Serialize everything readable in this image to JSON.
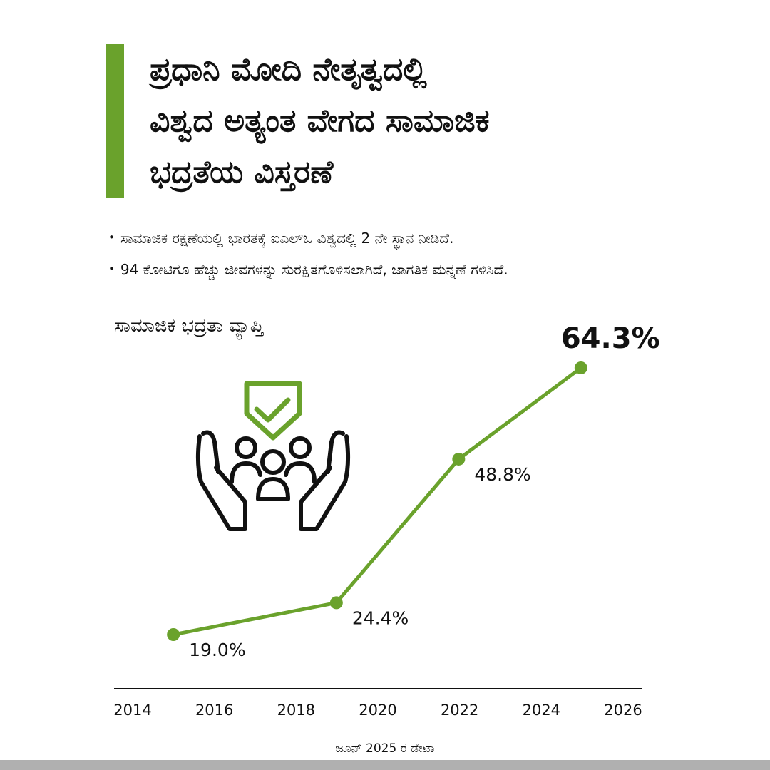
{
  "header": {
    "title_lines": [
      "ಪ್ರಧಾನಿ ಮೋದಿ ನೇತೃತ್ವದಲ್ಲಿ",
      "ವಿಶ್ವದ ಅತ್ಯಂತ ವೇಗದ ಸಾಮಾಜಿಕ",
      "ಭದ್ರತೆಯ ವಿಸ್ತರಣೆ"
    ]
  },
  "bullets": [
    "ಸಾಮಾಜಿಕ ರಕ್ಷಣೆಯಲ್ಲಿ ಭಾರತಕ್ಕೆ ಐಎಲ್ಒ ವಿಶ್ವದಲ್ಲಿ 2 ನೇ ಸ್ಥಾನ ನೀಡಿದೆ.",
    "94 ಕೋಟಿಗೂ ಹೆಚ್ಚು ಜೀವಗಳನ್ನು ಸುರಕ್ಷಿತಗೊಳಿಸಲಾಗಿದೆ, ಜಾಗತಿಕ ಮನ್ನಣೆ ಗಳಿಸಿದೆ."
  ],
  "footnote": "ಜೂನ್ 2025 ರ ಡೇಟಾ",
  "icons": {
    "illustration": "hands-protecting-family-with-shield-check-icon"
  },
  "colors": {
    "accent": "#6aa22c",
    "text": "#111111",
    "axis": "#111111",
    "bottom_strip": "#b0b0b0"
  },
  "chart_data": {
    "type": "line",
    "title": "ಸಾಮಾಜಿಕ ಭದ್ರತಾ ವ್ಯಾಪ್ತಿ",
    "xlabel": "",
    "ylabel": "",
    "x": [
      2015,
      2019,
      2022,
      2025
    ],
    "series": [
      {
        "values": [
          19.0,
          24.4,
          48.8,
          64.3
        ],
        "labels": [
          "19.0%",
          "24.4%",
          "48.8%",
          "64.3%"
        ]
      }
    ],
    "xticks": [
      "2014",
      "2016",
      "2018",
      "2020",
      "2022",
      "2024",
      "2026"
    ],
    "xlim": [
      2014,
      2026
    ],
    "ylim": [
      10,
      70
    ],
    "grid": false,
    "highlight_last_label": true
  }
}
